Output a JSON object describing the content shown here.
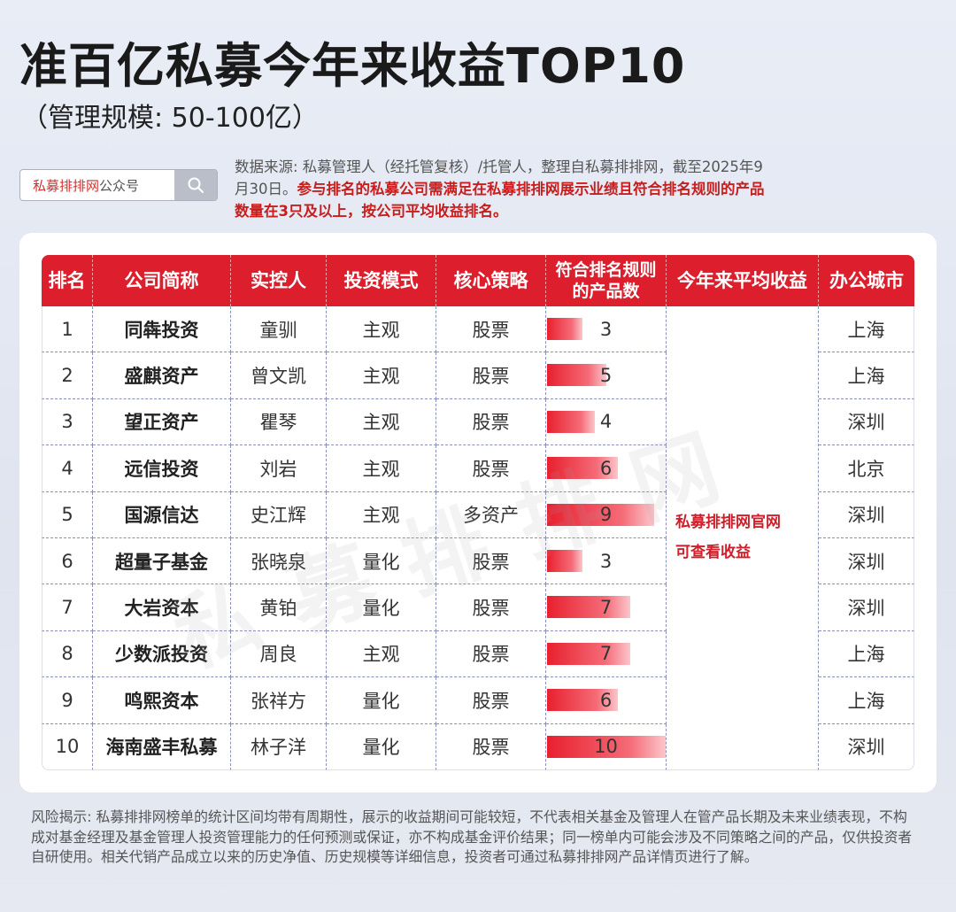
{
  "header": {
    "title": "准百亿私募今年来收益TOP10",
    "subtitle": "（管理规模: 50-100亿）"
  },
  "search": {
    "brand": "私募排排网",
    "suffix": "公众号"
  },
  "note": {
    "normal": "数据来源: 私募管理人（经托管复核）/托管人，整理自私募排排网，截至2025年9月30日。",
    "emphasis": "参与排名的私募公司需满足在私募排排网展示业绩且符合排名规则的产品数量在3只及以上，按公司平均收益排名。"
  },
  "table": {
    "headers": [
      "排名",
      "公司简称",
      "实控人",
      "投资模式",
      "核心策略",
      "符合排名规则的产品数",
      "今年来平均收益",
      "办公城市"
    ],
    "merged_note": [
      "私募排排网官网",
      "可查看收益"
    ],
    "rows": [
      {
        "rank": "1",
        "company": "同犇投资",
        "controller": "童驯",
        "mode": "主观",
        "strategy": "股票",
        "products": 3,
        "city": "上海"
      },
      {
        "rank": "2",
        "company": "盛麒资产",
        "controller": "曾文凯",
        "mode": "主观",
        "strategy": "股票",
        "products": 5,
        "city": "上海"
      },
      {
        "rank": "3",
        "company": "望正资产",
        "controller": "瞿琴",
        "mode": "主观",
        "strategy": "股票",
        "products": 4,
        "city": "深圳"
      },
      {
        "rank": "4",
        "company": "远信投资",
        "controller": "刘岩",
        "mode": "主观",
        "strategy": "股票",
        "products": 6,
        "city": "北京"
      },
      {
        "rank": "5",
        "company": "国源信达",
        "controller": "史江辉",
        "mode": "主观",
        "strategy": "多资产",
        "products": 9,
        "city": "深圳"
      },
      {
        "rank": "6",
        "company": "超量子基金",
        "controller": "张晓泉",
        "mode": "量化",
        "strategy": "股票",
        "products": 3,
        "city": "深圳"
      },
      {
        "rank": "7",
        "company": "大岩资本",
        "controller": "黄铂",
        "mode": "量化",
        "strategy": "股票",
        "products": 7,
        "city": "深圳"
      },
      {
        "rank": "8",
        "company": "少数派投资",
        "controller": "周良",
        "mode": "主观",
        "strategy": "股票",
        "products": 7,
        "city": "上海"
      },
      {
        "rank": "9",
        "company": "鸣熙资本",
        "controller": "张祥方",
        "mode": "量化",
        "strategy": "股票",
        "products": 6,
        "city": "上海"
      },
      {
        "rank": "10",
        "company": "海南盛丰私募",
        "controller": "林子洋",
        "mode": "量化",
        "strategy": "股票",
        "products": 10,
        "city": "深圳"
      }
    ]
  },
  "watermark": "私募排排网",
  "risk": "风险揭示: 私募排排网榜单的统计区间均带有周期性，展示的收益期间可能较短，不代表相关基金及管理人在管产品长期及未来业绩表现，不构成对基金经理及基金管理人投资管理能力的任何预测或保证，亦不构成基金评价结果；同一榜单内可能会涉及不同策略之间的产品，仅供投资者自研使用。相关代销产品成立以来的历史净值、历史规模等详细信息，投资者可通过私募排排网产品详情页进行了解。",
  "colors": {
    "accent_red": "#dc1e2d",
    "text_red": "#c81e1e"
  },
  "icons": {
    "search": "search-icon"
  }
}
